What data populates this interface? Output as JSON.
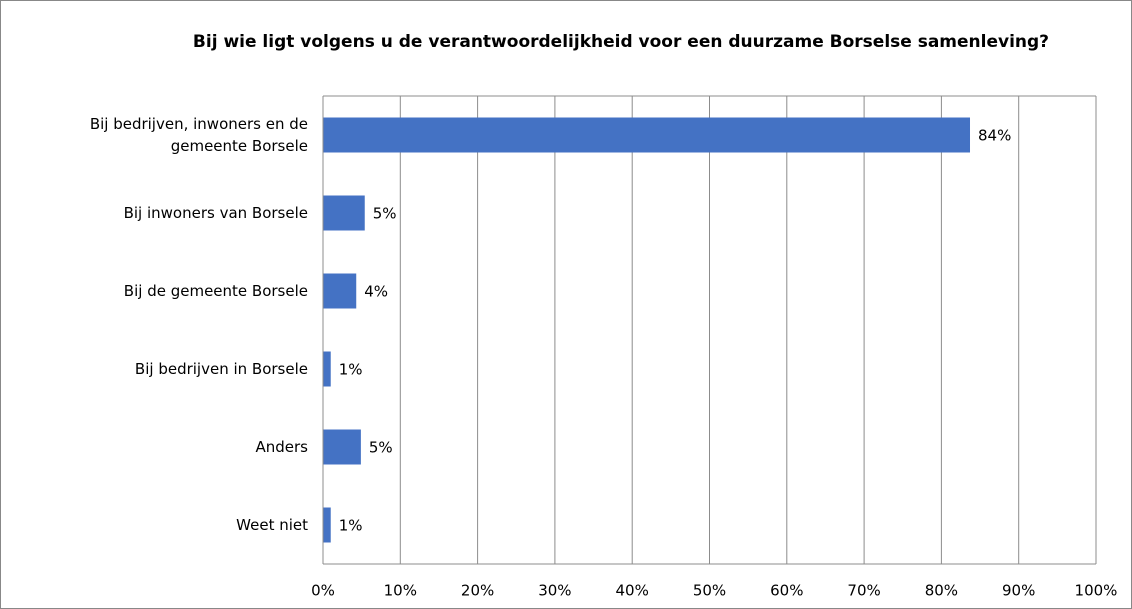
{
  "chart_data": {
    "type": "barh",
    "title": "Bij wie ligt volgens u de verantwoordelijkheid voor een duurzame Borselse samenleving?",
    "categories": [
      "Bij bedrijven, inwoners en de gemeente Borsele",
      "Bij inwoners van Borsele",
      "Bij de gemeente Borsele",
      "Bij bedrijven in Borsele",
      "Anders",
      "Weet niet"
    ],
    "values": [
      83.7,
      5.4,
      4.3,
      1.0,
      4.9,
      1.0
    ],
    "value_labels": [
      "84%",
      "5%",
      "4%",
      "1%",
      "5%",
      "1%"
    ],
    "color": "#4472c4",
    "xlim": [
      0,
      100
    ],
    "xticks": [
      {
        "value": 0,
        "label": "0%"
      },
      {
        "value": 10,
        "label": "10%"
      },
      {
        "value": 20,
        "label": "20%"
      },
      {
        "value": 30,
        "label": "30%"
      },
      {
        "value": 40,
        "label": "40%"
      },
      {
        "value": 50,
        "label": "50%"
      },
      {
        "value": 60,
        "label": "60%"
      },
      {
        "value": 70,
        "label": "70%"
      },
      {
        "value": 80,
        "label": "80%"
      },
      {
        "value": 90,
        "label": "90%"
      },
      {
        "value": 100,
        "label": "100%"
      }
    ],
    "grid": true
  }
}
